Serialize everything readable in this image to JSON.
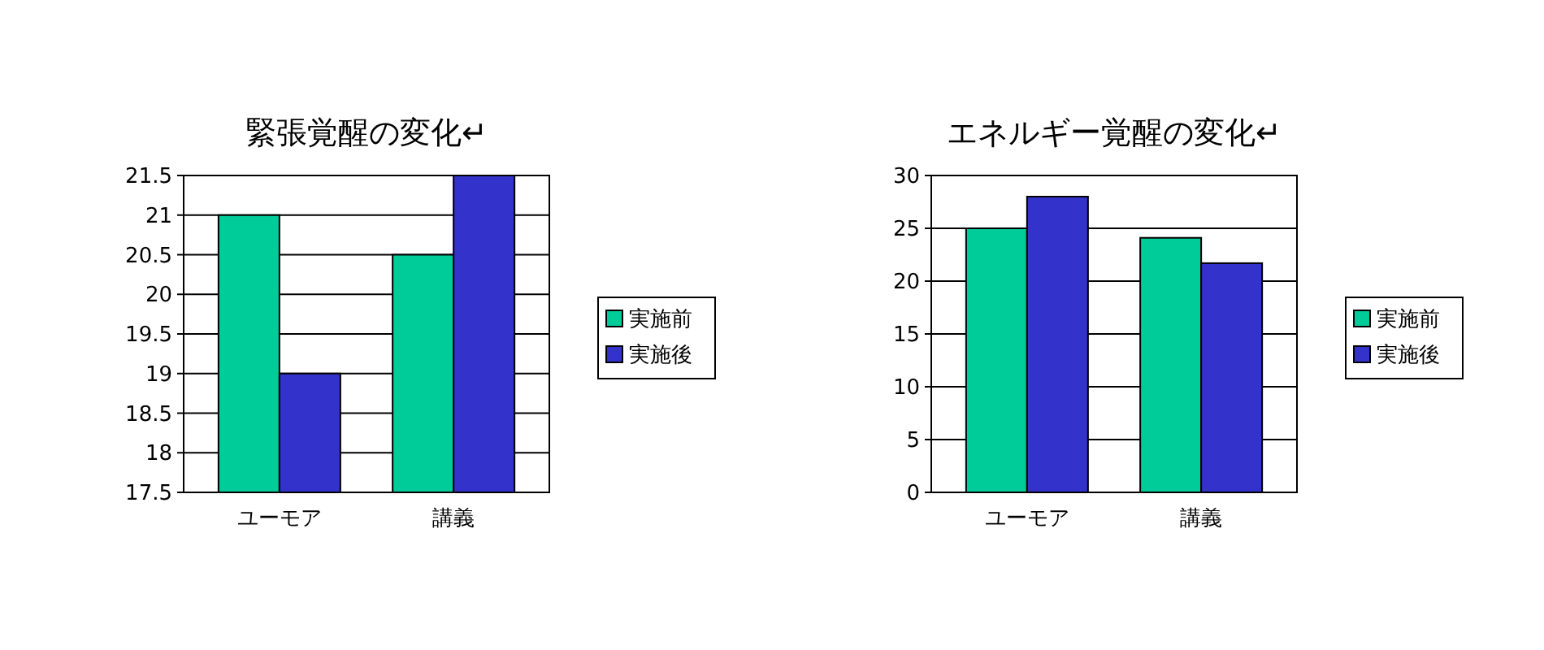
{
  "chart_data": [
    {
      "type": "bar",
      "title": "緊張覚醒の変化↵",
      "categories": [
        "ユーモア",
        "講義"
      ],
      "series": [
        {
          "name": "実施前",
          "color": "#00cc99",
          "values": [
            21,
            20.5
          ]
        },
        {
          "name": "実施後",
          "color": "#3333cc",
          "values": [
            19,
            21.5
          ]
        }
      ],
      "ylim": [
        17.5,
        21.5
      ],
      "yticks": [
        17.5,
        18,
        18.5,
        19,
        19.5,
        20,
        20.5,
        21,
        21.5
      ],
      "grid": "y",
      "legend": "right"
    },
    {
      "type": "bar",
      "title": "エネルギー覚醒の変化↵",
      "categories": [
        "ユーモア",
        "講義"
      ],
      "series": [
        {
          "name": "実施前",
          "color": "#00cc99",
          "values": [
            25,
            24.1
          ]
        },
        {
          "name": "実施後",
          "color": "#3333cc",
          "values": [
            28,
            21.7
          ]
        }
      ],
      "ylim": [
        0,
        30
      ],
      "yticks": [
        0,
        5,
        10,
        15,
        20,
        25,
        30
      ],
      "grid": "y",
      "legend": "right"
    }
  ]
}
